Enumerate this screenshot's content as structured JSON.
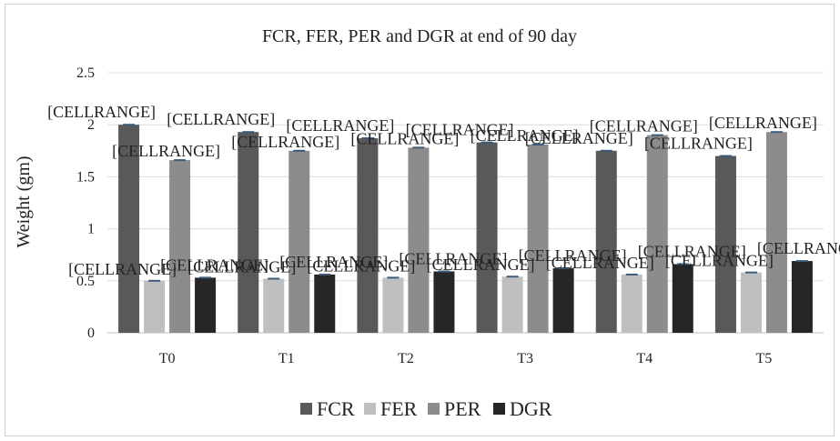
{
  "chart_data": {
    "type": "bar",
    "title": "FCR, FER, PER and DGR at end of 90 day",
    "xlabel": "",
    "ylabel": "Weight (gm)",
    "categories": [
      "T0",
      "T1",
      "T2",
      "T3",
      "T4",
      "T5"
    ],
    "ylim": [
      0,
      2.5
    ],
    "yticks": [
      "0",
      "0.5",
      "1",
      "1.5",
      "2",
      "2.5"
    ],
    "grid": true,
    "legend_position": "bottom",
    "data_label_text": "[CELLRANGE]",
    "series": [
      {
        "name": "FCR",
        "color": "#595959",
        "values": [
          2.0,
          1.93,
          1.87,
          1.83,
          1.75,
          1.7
        ]
      },
      {
        "name": "FER",
        "color": "#bfbfbf",
        "values": [
          0.5,
          0.52,
          0.53,
          0.54,
          0.56,
          0.58
        ]
      },
      {
        "name": "PER",
        "color": "#8c8c8c",
        "values": [
          1.66,
          1.75,
          1.78,
          1.81,
          1.9,
          1.93
        ]
      },
      {
        "name": "DGR",
        "color": "#262626",
        "values": [
          0.53,
          0.56,
          0.59,
          0.62,
          0.66,
          0.69
        ]
      }
    ]
  }
}
